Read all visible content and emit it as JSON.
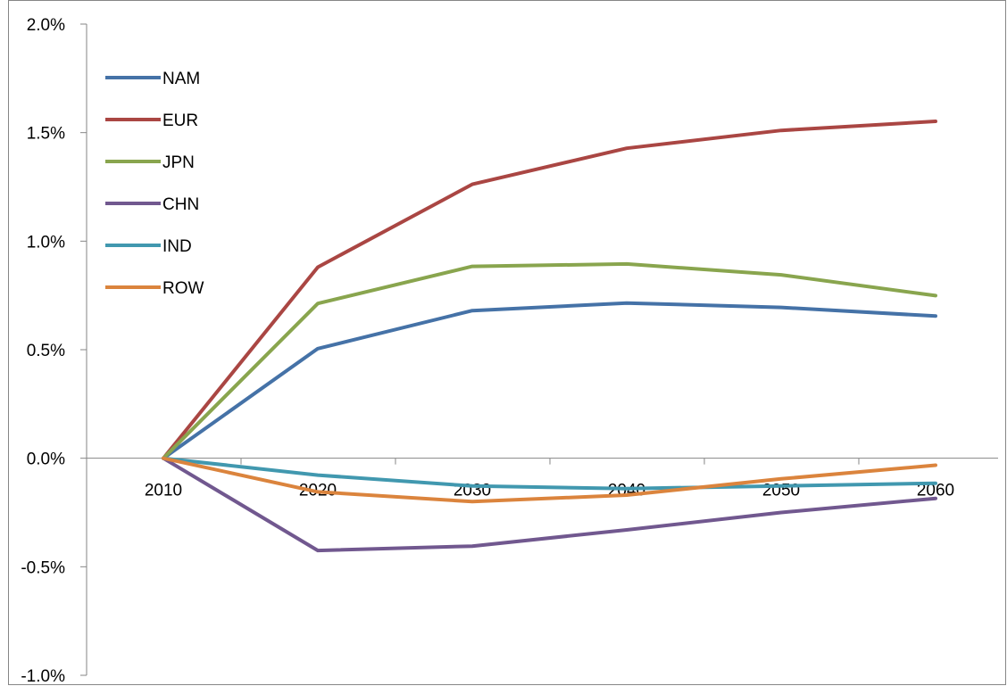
{
  "chart_data": {
    "type": "line",
    "title": "",
    "xlabel": "",
    "ylabel": "",
    "categories": [
      "2010",
      "2020",
      "2030",
      "2040",
      "2050",
      "2060"
    ],
    "ylim": [
      -0.01,
      0.02
    ],
    "y_ticks": [
      "-1.0%",
      "-0.5%",
      "0.0%",
      "0.5%",
      "1.0%",
      "1.5%",
      "2.0%"
    ],
    "y_tick_values": [
      -0.01,
      -0.005,
      0.0,
      0.005,
      0.01,
      0.015,
      0.02
    ],
    "grid": false,
    "legend_position": "top-left",
    "series": [
      {
        "name": "NAM",
        "color": "#4572A7",
        "values": [
          0.0,
          0.00505,
          0.0068,
          0.00715,
          0.00695,
          0.00655
        ]
      },
      {
        "name": "EUR",
        "color": "#AA4643",
        "values": [
          0.0,
          0.0088,
          0.01262,
          0.01428,
          0.0151,
          0.01552
        ]
      },
      {
        "name": "JPN",
        "color": "#89A54E",
        "values": [
          0.0,
          0.00713,
          0.00884,
          0.00895,
          0.00845,
          0.00749
        ]
      },
      {
        "name": "CHN",
        "color": "#71588F",
        "values": [
          0.0,
          -0.00425,
          -0.00405,
          -0.0033,
          -0.0025,
          -0.00185
        ]
      },
      {
        "name": "IND",
        "color": "#4198AF",
        "values": [
          0.0,
          -0.00078,
          -0.00128,
          -0.0014,
          -0.00128,
          -0.00115
        ]
      },
      {
        "name": "ROW",
        "color": "#DB843D",
        "values": [
          0.0,
          -0.00155,
          -0.002,
          -0.0017,
          -0.00095,
          -0.00032
        ]
      }
    ]
  }
}
